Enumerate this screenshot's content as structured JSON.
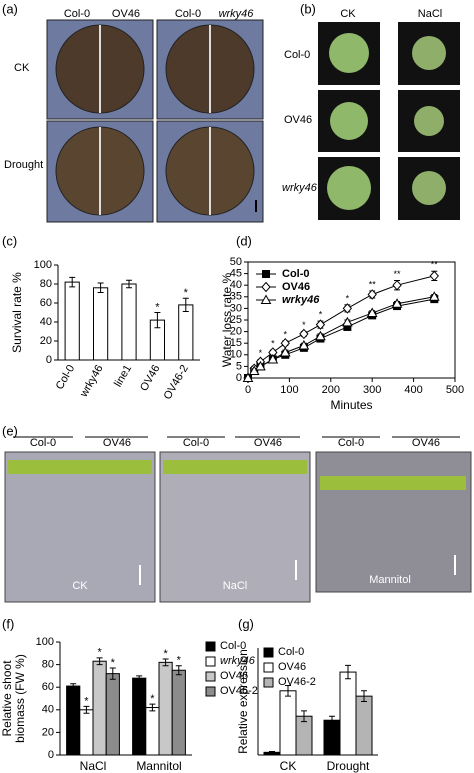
{
  "photo_panels": {
    "a": {
      "label": "(a)",
      "column_headers": [
        "Col-0",
        "OV46",
        "Col-0",
        "wrky46"
      ],
      "row_labels": [
        "CK",
        "Drought"
      ]
    },
    "b": {
      "label": "(b)",
      "column_headers": [
        "CK",
        "NaCl"
      ],
      "row_labels": [
        "Col-0",
        "OV46",
        "wrky46"
      ]
    },
    "e": {
      "label": "(e)",
      "plate_headers": [
        [
          "Col-0",
          "OV46"
        ],
        [
          "Col-0",
          "OV46"
        ],
        [
          "Col-0",
          "OV46"
        ]
      ],
      "plate_labels": [
        "CK",
        "NaCl",
        "Mannitol"
      ]
    }
  },
  "chart_data": [
    {
      "type": "bar",
      "panel_label": "(c)",
      "categories": [
        "Col-0",
        "wrky46",
        "line1",
        "OV46",
        "OV46-2"
      ],
      "values": [
        82,
        76,
        80,
        42,
        58
      ],
      "errors": [
        5,
        5,
        4,
        8,
        7
      ],
      "significance": [
        null,
        null,
        null,
        "*",
        "*"
      ],
      "color": "#ffffff",
      "ylim": [
        0,
        100
      ],
      "yticks": [
        0,
        20,
        40,
        60,
        80,
        100
      ],
      "y_label": "Survival rate %"
    },
    {
      "type": "line",
      "panel_label": "(d)",
      "x": [
        0,
        15,
        30,
        60,
        90,
        135,
        175,
        240,
        300,
        360,
        450
      ],
      "series": [
        {
          "name": "Col-0",
          "marker": "square",
          "color": "#000000",
          "values": [
            0,
            3,
            5,
            8,
            10,
            13,
            17,
            22,
            27,
            31,
            34
          ],
          "errors": [
            0.5,
            1,
            1,
            1,
            1,
            1,
            1,
            1,
            1,
            1,
            1
          ]
        },
        {
          "name": "OV46",
          "marker": "diamond",
          "color": "#000000",
          "values": [
            0,
            4,
            7,
            11,
            15,
            19,
            23,
            30,
            36,
            40,
            44
          ],
          "errors": [
            0.5,
            1,
            1,
            1,
            1,
            1,
            1.5,
            1.5,
            1.5,
            2,
            2
          ]
        },
        {
          "name": "wrky46",
          "marker": "triangle",
          "color": "#000000",
          "values": [
            0,
            3,
            5,
            8,
            11,
            14,
            18,
            24,
            28,
            32,
            35
          ],
          "errors": [
            0.5,
            1,
            1,
            1,
            1,
            1,
            1,
            1,
            1,
            1,
            1
          ]
        }
      ],
      "significance": [
        null,
        null,
        "*",
        "*",
        "*",
        "*",
        "*",
        "*",
        "**",
        "**",
        "**"
      ],
      "xlim": [
        0,
        500
      ],
      "xticks": [
        0,
        100,
        200,
        300,
        400,
        500
      ],
      "ylim": [
        0,
        50
      ],
      "yticks": [
        0,
        5,
        10,
        15,
        20,
        25,
        30,
        35,
        40,
        45,
        50
      ],
      "x_label": "Minutes",
      "y_label": "Water loss rate %",
      "legend": "upper left"
    },
    {
      "type": "grouped_bar",
      "panel_label": "(f)",
      "categories": [
        "NaCl",
        "Mannitol"
      ],
      "series": [
        {
          "name": "Col-0",
          "color": "#000000",
          "values": [
            61,
            68
          ],
          "errors": [
            2,
            2
          ],
          "significance": [
            null,
            null
          ]
        },
        {
          "name": "wrky46",
          "color": "#ffffff",
          "values": [
            40,
            42
          ],
          "errors": [
            3,
            3
          ],
          "significance": [
            "*",
            "*"
          ]
        },
        {
          "name": "OV46",
          "color": "#c8c8c8",
          "values": [
            83,
            82
          ],
          "errors": [
            3,
            3
          ],
          "significance": [
            "*",
            "*"
          ]
        },
        {
          "name": "OV46-2",
          "color": "#8c8c8c",
          "values": [
            72,
            75
          ],
          "errors": [
            5,
            4
          ],
          "significance": [
            "*",
            "*"
          ]
        }
      ],
      "ylim": [
        0,
        100
      ],
      "yticks": [
        0,
        20,
        40,
        60,
        80,
        100
      ],
      "y_label": [
        "Relative shoot",
        "biomass (FW %)"
      ],
      "legend": "right"
    },
    {
      "type": "grouped_bar",
      "panel_label": "(g)",
      "categories": [
        "CK",
        "Drought"
      ],
      "series": [
        {
          "name": "Col-0",
          "color": "#000000",
          "values": [
            1,
            13
          ],
          "errors": [
            0.3,
            1.5
          ]
        },
        {
          "name": "OV46",
          "color": "#ffffff",
          "values": [
            24,
            31
          ],
          "errors": [
            2,
            2.5
          ]
        },
        {
          "name": "OV46-2",
          "color": "#b4b4b4",
          "values": [
            14.5,
            22
          ],
          "errors": [
            2,
            2
          ]
        }
      ],
      "ylim": [
        0,
        40
      ],
      "y_label": [
        "Relative expression"
      ],
      "legend": "upper left"
    }
  ]
}
